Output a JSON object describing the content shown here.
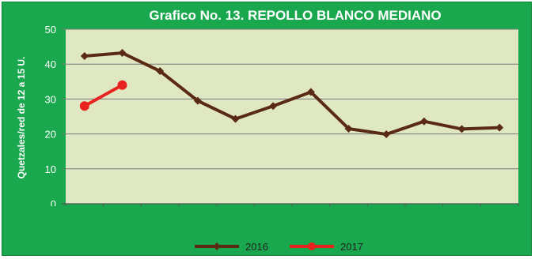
{
  "chart_data": {
    "type": "line",
    "title": "Grafico No. 13.  REPOLLO  BLANCO  MEDIANO",
    "ylabel": "Quetzales/red de 12 a 15 U.",
    "xlabel": "",
    "ylim": [
      0,
      50
    ],
    "yticks": [
      "0",
      "10",
      "20",
      "30",
      "40",
      "50"
    ],
    "x_count": 12,
    "grid": true,
    "legend_position": "bottom",
    "series": [
      {
        "name": "2016",
        "color": "#5a2a14",
        "values": [
          42.3,
          43.2,
          38.0,
          29.5,
          24.3,
          28.0,
          32.0,
          21.5,
          19.9,
          23.6,
          21.4,
          21.8
        ]
      },
      {
        "name": "2017",
        "color": "#e8231f",
        "values": [
          28.0,
          34.0
        ]
      }
    ]
  },
  "colors": {
    "background": "#1aa84e",
    "plot_area": "#dfe8c3",
    "gridline": "#7a7a7a"
  }
}
